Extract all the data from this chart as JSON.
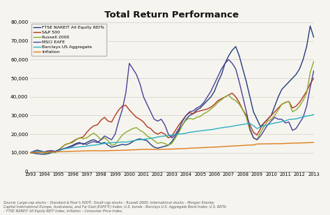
{
  "title": "Total Return Performance",
  "ylim": [
    0,
    80000
  ],
  "yticks": [
    0,
    10000,
    20000,
    30000,
    40000,
    50000,
    60000,
    70000,
    80000
  ],
  "xlim": [
    1993,
    2013
  ],
  "xtick_years": [
    1993,
    1994,
    1995,
    1996,
    1997,
    1998,
    1999,
    2000,
    2001,
    2002,
    2003,
    2004,
    2005,
    2006,
    2007,
    2008,
    2009,
    2010,
    2011,
    2012,
    2013
  ],
  "series": {
    "FTSE NAREIT All Equity REITs": {
      "color": "#1f3d7a",
      "lw": 1.0,
      "data_x": [
        1993.0,
        1993.25,
        1993.5,
        1993.75,
        1994.0,
        1994.25,
        1994.5,
        1994.75,
        1995.0,
        1995.25,
        1995.5,
        1995.75,
        1996.0,
        1996.25,
        1996.5,
        1996.75,
        1997.0,
        1997.25,
        1997.5,
        1997.75,
        1998.0,
        1998.25,
        1998.5,
        1998.75,
        1999.0,
        1999.25,
        1999.5,
        1999.75,
        2000.0,
        2000.25,
        2000.5,
        2000.75,
        2001.0,
        2001.25,
        2001.5,
        2001.75,
        2002.0,
        2002.25,
        2002.5,
        2002.75,
        2003.0,
        2003.25,
        2003.5,
        2003.75,
        2004.0,
        2004.25,
        2004.5,
        2004.75,
        2005.0,
        2005.25,
        2005.5,
        2005.75,
        2006.0,
        2006.25,
        2006.5,
        2006.75,
        2007.0,
        2007.25,
        2007.5,
        2007.75,
        2008.0,
        2008.25,
        2008.5,
        2008.75,
        2009.0,
        2009.25,
        2009.5,
        2009.75,
        2010.0,
        2010.25,
        2010.5,
        2010.75,
        2011.0,
        2011.25,
        2011.5,
        2011.75,
        2012.0,
        2012.25,
        2012.5,
        2012.75,
        2013.0
      ],
      "data_y": [
        10000,
        9800,
        9500,
        9300,
        9200,
        9500,
        10000,
        10500,
        11000,
        11800,
        12500,
        13200,
        14000,
        15000,
        15500,
        14500,
        15500,
        16500,
        17000,
        16000,
        15000,
        15500,
        14000,
        13000,
        13500,
        14000,
        14500,
        14200,
        14800,
        16000,
        17000,
        17500,
        17000,
        16500,
        14500,
        13000,
        12500,
        13000,
        13500,
        14000,
        16000,
        19000,
        22000,
        25000,
        28000,
        30000,
        31000,
        33000,
        34000,
        36000,
        38000,
        40000,
        43000,
        48000,
        52000,
        58000,
        62000,
        65000,
        67000,
        62000,
        55000,
        48000,
        40000,
        32000,
        28000,
        24000,
        26000,
        28000,
        30000,
        35000,
        40000,
        44000,
        46000,
        48000,
        50000,
        52000,
        55000,
        60000,
        67000,
        78000,
        72000
      ]
    },
    "S&P 500": {
      "color": "#b5361c",
      "lw": 1.0,
      "data_x": [
        1993.0,
        1993.25,
        1993.5,
        1993.75,
        1994.0,
        1994.25,
        1994.5,
        1994.75,
        1995.0,
        1995.25,
        1995.5,
        1995.75,
        1996.0,
        1996.25,
        1996.5,
        1996.75,
        1997.0,
        1997.25,
        1997.5,
        1997.75,
        1998.0,
        1998.25,
        1998.5,
        1998.75,
        1999.0,
        1999.25,
        1999.5,
        1999.75,
        2000.0,
        2000.25,
        2000.5,
        2000.75,
        2001.0,
        2001.25,
        2001.5,
        2001.75,
        2002.0,
        2002.25,
        2002.5,
        2002.75,
        2003.0,
        2003.25,
        2003.5,
        2003.75,
        2004.0,
        2004.25,
        2004.5,
        2004.75,
        2005.0,
        2005.25,
        2005.5,
        2005.75,
        2006.0,
        2006.25,
        2006.5,
        2006.75,
        2007.0,
        2007.25,
        2007.5,
        2007.75,
        2008.0,
        2008.25,
        2008.5,
        2008.75,
        2009.0,
        2009.25,
        2009.5,
        2009.75,
        2010.0,
        2010.25,
        2010.5,
        2010.75,
        2011.0,
        2011.25,
        2011.5,
        2011.75,
        2012.0,
        2012.25,
        2012.5,
        2012.75,
        2013.0
      ],
      "data_y": [
        10000,
        10300,
        10700,
        10500,
        10200,
        10500,
        10800,
        10600,
        11500,
        13000,
        14500,
        15000,
        16000,
        17200,
        18000,
        18500,
        21000,
        23000,
        24500,
        25000,
        27500,
        29000,
        27000,
        26500,
        30000,
        33000,
        35000,
        35500,
        33000,
        31000,
        29000,
        28000,
        26500,
        24000,
        23000,
        21000,
        20000,
        21000,
        20000,
        18000,
        19000,
        22000,
        25000,
        27500,
        30000,
        31500,
        31000,
        32000,
        32500,
        33000,
        33500,
        34500,
        36000,
        38000,
        39000,
        40000,
        41000,
        42000,
        40000,
        37000,
        33000,
        30000,
        25000,
        21000,
        19500,
        23000,
        26000,
        28000,
        30000,
        32000,
        34000,
        36000,
        37000,
        37500,
        34000,
        35000,
        37000,
        40000,
        43000,
        47000,
        50000
      ]
    },
    "Russell 2000": {
      "color": "#8aab2a",
      "lw": 1.0,
      "data_x": [
        1993.0,
        1993.25,
        1993.5,
        1993.75,
        1994.0,
        1994.25,
        1994.5,
        1994.75,
        1995.0,
        1995.25,
        1995.5,
        1995.75,
        1996.0,
        1996.25,
        1996.5,
        1996.75,
        1997.0,
        1997.25,
        1997.5,
        1997.75,
        1998.0,
        1998.25,
        1998.5,
        1998.75,
        1999.0,
        1999.25,
        1999.5,
        1999.75,
        2000.0,
        2000.25,
        2000.5,
        2000.75,
        2001.0,
        2001.25,
        2001.5,
        2001.75,
        2002.0,
        2002.25,
        2002.5,
        2002.75,
        2003.0,
        2003.25,
        2003.5,
        2003.75,
        2004.0,
        2004.25,
        2004.5,
        2004.75,
        2005.0,
        2005.25,
        2005.5,
        2005.75,
        2006.0,
        2006.25,
        2006.5,
        2006.75,
        2007.0,
        2007.25,
        2007.5,
        2007.75,
        2008.0,
        2008.25,
        2008.5,
        2008.75,
        2009.0,
        2009.25,
        2009.5,
        2009.75,
        2010.0,
        2010.25,
        2010.5,
        2010.75,
        2011.0,
        2011.25,
        2011.5,
        2011.75,
        2012.0,
        2012.25,
        2012.5,
        2012.75,
        2013.0
      ],
      "data_y": [
        10000,
        10500,
        11000,
        10500,
        9800,
        10200,
        10500,
        10000,
        11000,
        13000,
        14500,
        15000,
        15500,
        17000,
        18000,
        17500,
        18000,
        19500,
        20500,
        19000,
        17000,
        18000,
        16500,
        14000,
        14500,
        17000,
        19500,
        21000,
        22000,
        23000,
        23500,
        22000,
        21000,
        19000,
        18000,
        16500,
        15000,
        15500,
        15000,
        14000,
        15000,
        18000,
        21000,
        25000,
        27500,
        28500,
        28000,
        29000,
        29500,
        31000,
        32000,
        33500,
        35000,
        37000,
        38500,
        40000,
        41000,
        39000,
        38000,
        36000,
        33000,
        29000,
        22000,
        18000,
        17000,
        21000,
        24000,
        27000,
        28000,
        30000,
        33000,
        36000,
        37000,
        37500,
        32000,
        33000,
        35000,
        38000,
        42000,
        53000,
        59000
      ]
    },
    "MSCI EAFE": {
      "color": "#4b3f96",
      "lw": 1.0,
      "data_x": [
        1993.0,
        1993.25,
        1993.5,
        1993.75,
        1994.0,
        1994.25,
        1994.5,
        1994.75,
        1995.0,
        1995.25,
        1995.5,
        1995.75,
        1996.0,
        1996.25,
        1996.5,
        1996.75,
        1997.0,
        1997.25,
        1997.5,
        1997.75,
        1998.0,
        1998.25,
        1998.5,
        1998.75,
        1999.0,
        1999.25,
        1999.5,
        1999.75,
        2000.0,
        2000.25,
        2000.5,
        2000.75,
        2001.0,
        2001.25,
        2001.5,
        2001.75,
        2002.0,
        2002.25,
        2002.5,
        2002.75,
        2003.0,
        2003.25,
        2003.5,
        2003.75,
        2004.0,
        2004.25,
        2004.5,
        2004.75,
        2005.0,
        2005.25,
        2005.5,
        2005.75,
        2006.0,
        2006.25,
        2006.5,
        2006.75,
        2007.0,
        2007.25,
        2007.5,
        2007.75,
        2008.0,
        2008.25,
        2008.5,
        2008.75,
        2009.0,
        2009.25,
        2009.5,
        2009.75,
        2010.0,
        2010.25,
        2010.5,
        2010.75,
        2011.0,
        2011.25,
        2011.5,
        2011.75,
        2012.0,
        2012.25,
        2012.5,
        2012.75,
        2013.0
      ],
      "data_y": [
        10000,
        10800,
        11500,
        11000,
        10500,
        11000,
        11200,
        10800,
        11500,
        12000,
        12500,
        13000,
        13500,
        14500,
        15000,
        15000,
        14500,
        15500,
        16000,
        15500,
        17000,
        19000,
        18000,
        17000,
        20000,
        27000,
        33000,
        42000,
        58000,
        55000,
        52000,
        47000,
        40000,
        36000,
        32000,
        28000,
        27000,
        28000,
        25000,
        20000,
        18000,
        20000,
        23000,
        27000,
        30000,
        32000,
        32500,
        34000,
        35000,
        37000,
        40000,
        43000,
        47000,
        51000,
        55000,
        58000,
        60000,
        58000,
        55000,
        48000,
        40000,
        32000,
        23000,
        18000,
        17000,
        19000,
        22000,
        25000,
        27000,
        29000,
        28000,
        28000,
        26000,
        26500,
        22000,
        23000,
        26000,
        29000,
        35000,
        45000,
        54000
      ]
    },
    "Barclays US Aggregate": {
      "color": "#29afc0",
      "lw": 1.0,
      "data_x": [
        1993.0,
        1993.25,
        1993.5,
        1993.75,
        1994.0,
        1994.25,
        1994.5,
        1994.75,
        1995.0,
        1995.25,
        1995.5,
        1995.75,
        1996.0,
        1996.25,
        1996.5,
        1996.75,
        1997.0,
        1997.25,
        1997.5,
        1997.75,
        1998.0,
        1998.25,
        1998.5,
        1998.75,
        1999.0,
        1999.25,
        1999.5,
        1999.75,
        2000.0,
        2000.25,
        2000.5,
        2000.75,
        2001.0,
        2001.25,
        2001.5,
        2001.75,
        2002.0,
        2002.25,
        2002.5,
        2002.75,
        2003.0,
        2003.25,
        2003.5,
        2003.75,
        2004.0,
        2004.25,
        2004.5,
        2004.75,
        2005.0,
        2005.25,
        2005.5,
        2005.75,
        2006.0,
        2006.25,
        2006.5,
        2006.75,
        2007.0,
        2007.25,
        2007.5,
        2007.75,
        2008.0,
        2008.25,
        2008.5,
        2008.75,
        2009.0,
        2009.25,
        2009.5,
        2009.75,
        2010.0,
        2010.25,
        2010.5,
        2010.75,
        2011.0,
        2011.25,
        2011.5,
        2011.75,
        2012.0,
        2012.25,
        2012.5,
        2012.75,
        2013.0
      ],
      "data_y": [
        10000,
        10300,
        10600,
        10500,
        10500,
        10300,
        10200,
        10400,
        11000,
        11800,
        12200,
        12500,
        12800,
        13000,
        13200,
        13400,
        13600,
        13900,
        14100,
        14300,
        14700,
        15000,
        15200,
        15400,
        15500,
        15600,
        15800,
        15700,
        16000,
        16400,
        16800,
        17000,
        17200,
        17500,
        17800,
        18000,
        18500,
        18800,
        19000,
        19200,
        19500,
        19800,
        20000,
        20200,
        20500,
        21000,
        21200,
        21500,
        21700,
        22000,
        22200,
        22400,
        22700,
        23100,
        23400,
        23700,
        23900,
        24200,
        24600,
        24900,
        25200,
        25500,
        25800,
        24500,
        23000,
        23800,
        24500,
        25000,
        25500,
        26000,
        26300,
        26700,
        27200,
        27800,
        28000,
        28200,
        28700,
        29300,
        29700,
        30000,
        30500
      ]
    },
    "Inflation": {
      "color": "#e07b1a",
      "lw": 1.0,
      "data_x": [
        1993.0,
        1993.25,
        1993.5,
        1993.75,
        1994.0,
        1994.25,
        1994.5,
        1994.75,
        1995.0,
        1995.25,
        1995.5,
        1995.75,
        1996.0,
        1996.25,
        1996.5,
        1996.75,
        1997.0,
        1997.25,
        1997.5,
        1997.75,
        1998.0,
        1998.25,
        1998.5,
        1998.75,
        1999.0,
        1999.25,
        1999.5,
        1999.75,
        2000.0,
        2000.25,
        2000.5,
        2000.75,
        2001.0,
        2001.25,
        2001.5,
        2001.75,
        2002.0,
        2002.25,
        2002.5,
        2002.75,
        2003.0,
        2003.25,
        2003.5,
        2003.75,
        2004.0,
        2004.25,
        2004.5,
        2004.75,
        2005.0,
        2005.25,
        2005.5,
        2005.75,
        2006.0,
        2006.25,
        2006.5,
        2006.75,
        2007.0,
        2007.25,
        2007.5,
        2007.75,
        2008.0,
        2008.25,
        2008.5,
        2008.75,
        2009.0,
        2009.25,
        2009.5,
        2009.75,
        2010.0,
        2010.25,
        2010.5,
        2010.75,
        2011.0,
        2011.25,
        2011.5,
        2011.75,
        2012.0,
        2012.25,
        2012.5,
        2012.75,
        2013.0
      ],
      "data_y": [
        10000,
        10070,
        10140,
        10200,
        10270,
        10340,
        10410,
        10470,
        10540,
        10600,
        10660,
        10730,
        10800,
        10860,
        10920,
        10990,
        11050,
        11090,
        11130,
        11090,
        11090,
        11110,
        11140,
        11200,
        11250,
        11290,
        11340,
        11410,
        11500,
        11580,
        11660,
        11740,
        11810,
        11820,
        11830,
        11820,
        11820,
        11860,
        11900,
        11940,
        12000,
        12080,
        12160,
        12230,
        12300,
        12450,
        12540,
        12620,
        12700,
        12800,
        12900,
        12980,
        13040,
        13130,
        13250,
        13380,
        13510,
        13620,
        13720,
        13820,
        13940,
        14050,
        14150,
        14200,
        14700,
        14750,
        14800,
        14800,
        14850,
        14870,
        14890,
        14900,
        15000,
        15100,
        15200,
        15200,
        15250,
        15320,
        15380,
        15450,
        15600
      ]
    }
  },
  "source_text": "Source: Large-cap stocks – Standard & Poor’s 500®; Small-cap stocks – Russell 2000; International stocks – Morgan Stanley\nCapital International Europe, Australasia, and Far East (EAFE®) Index; U.S. bonds - Barclays U.S. Aggregate Bond Index; U.S. REITs\n– FTSE NAREIT All Equity REIT Index, Inflation – Consumer Price Index.",
  "background_color": "#f5f4ef",
  "grid_color": "#d0cfc8"
}
